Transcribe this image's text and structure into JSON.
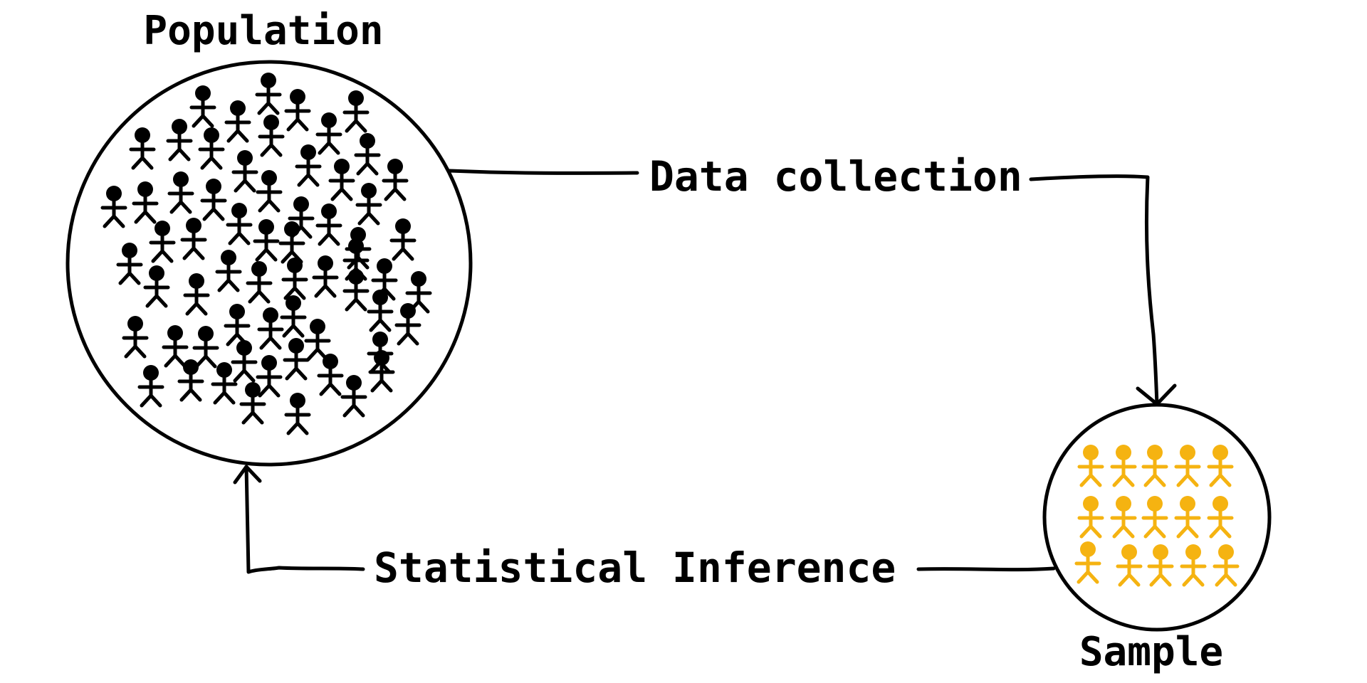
{
  "labels": {
    "population": "Population",
    "sample": "Sample",
    "data_collection": "Data collection",
    "statistical_inference": "Statistical Inference"
  },
  "colors": {
    "population_figure": "#000000",
    "sample_figure": "#F5B311",
    "outline": "#000000"
  },
  "icons": {
    "person": "person-icon"
  }
}
